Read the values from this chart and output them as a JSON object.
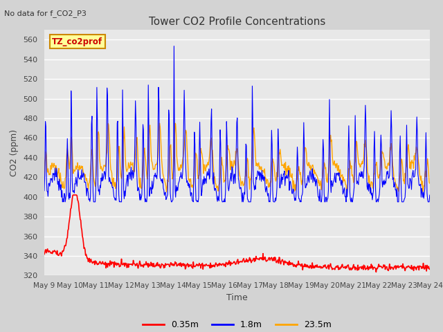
{
  "title": "Tower CO2 Profile Concentrations",
  "subtitle": "No data for f_CO2_P3",
  "xlabel": "Time",
  "ylabel": "CO2 (ppm)",
  "ylim": [
    320,
    570
  ],
  "yticks": [
    320,
    340,
    360,
    380,
    400,
    420,
    440,
    460,
    480,
    500,
    520,
    540,
    560
  ],
  "x_tick_labels": [
    "May 9",
    "May 10",
    "May 11",
    "May 12",
    "May 13",
    "May 14",
    "May 15",
    "May 16",
    "May 17",
    "May 18",
    "May 19",
    "May 20",
    "May 21",
    "May 22",
    "May 23",
    "May 24"
  ],
  "legend_labels": [
    "0.35m",
    "1.8m",
    "23.5m"
  ],
  "legend_colors": [
    "#ff0000",
    "#0000ff",
    "#ffa500"
  ],
  "line_colors": {
    "red": "#ff0000",
    "blue": "#0000ff",
    "orange": "#ffa500"
  },
  "fig_bg_color": "#d3d3d3",
  "plot_bg_color": "#e8e8e8",
  "annotation_text": "TZ_co2prof",
  "annotation_bg": "#ffff99",
  "annotation_border": "#cc8800",
  "grid_color": "#ffffff",
  "n_days": 15
}
